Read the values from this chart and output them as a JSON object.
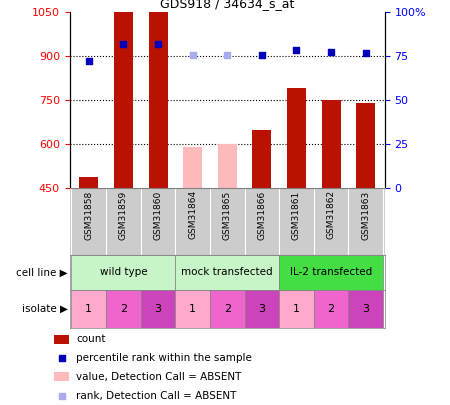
{
  "title": "GDS918 / 34634_s_at",
  "samples": [
    "GSM31858",
    "GSM31859",
    "GSM31860",
    "GSM31864",
    "GSM31865",
    "GSM31866",
    "GSM31861",
    "GSM31862",
    "GSM31863"
  ],
  "count_values": [
    490,
    1050,
    1050,
    null,
    null,
    650,
    790,
    750,
    740
  ],
  "count_absent_values": [
    null,
    null,
    null,
    590,
    600,
    null,
    null,
    null,
    null
  ],
  "rank_values": [
    885,
    940,
    940,
    null,
    null,
    905,
    920,
    915,
    910
  ],
  "rank_absent_values": [
    null,
    null,
    null,
    905,
    905,
    null,
    null,
    null,
    null
  ],
  "ylim_left": [
    450,
    1050
  ],
  "ylim_right": [
    0,
    100
  ],
  "yticks_left": [
    450,
    600,
    750,
    900,
    1050
  ],
  "yticks_right": [
    0,
    25,
    50,
    75,
    100
  ],
  "cell_lines": [
    {
      "label": "wild type",
      "span": [
        0,
        3
      ],
      "color": "#c8f5c8"
    },
    {
      "label": "mock transfected",
      "span": [
        3,
        6
      ],
      "color": "#c8f5c8"
    },
    {
      "label": "IL-2 transfected",
      "span": [
        6,
        9
      ],
      "color": "#44dd44"
    }
  ],
  "isolate_colors": [
    "#ffaacc",
    "#ee66cc",
    "#cc44bb"
  ],
  "isolates": [
    0,
    1,
    2,
    0,
    1,
    2,
    0,
    1,
    2
  ],
  "bar_color_present": "#bb1100",
  "bar_color_absent": "#ffbbbb",
  "dot_color_present": "#0000bb",
  "dot_color_absent": "#aaaaee",
  "bar_width": 0.55,
  "dotsize": 25,
  "gridline_y": [
    600,
    750,
    900
  ],
  "xlabel_bg": "#cccccc",
  "legend_items": [
    {
      "color": "#bb1100",
      "label": "count",
      "is_dot": false
    },
    {
      "color": "#0000bb",
      "label": "percentile rank within the sample",
      "is_dot": true
    },
    {
      "color": "#ffbbbb",
      "label": "value, Detection Call = ABSENT",
      "is_dot": false
    },
    {
      "color": "#aaaaee",
      "label": "rank, Detection Call = ABSENT",
      "is_dot": true
    }
  ]
}
